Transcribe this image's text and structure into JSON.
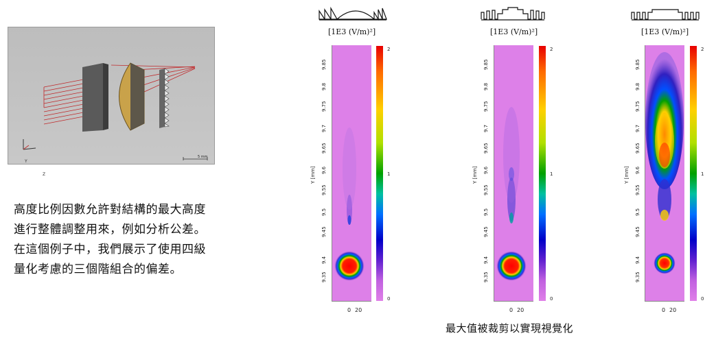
{
  "viewer": {
    "scale_label": "5 mm",
    "axis_y": "Y",
    "axis_z": "Z"
  },
  "description": "高度比例因數允許對結構的最大高度進行整體調整用來，例如分析公差。在這個例子中，我們展示了使用四級量化考慮的三個階組合的偏差。",
  "panels": [
    {
      "unit": "[1E3 (V/m)²]",
      "y_label": "Y [mm]",
      "y_ticks": [
        "9.85",
        "9.8",
        "9.75",
        "9.7",
        "9.65",
        "9.6",
        "9.55",
        "9.5",
        "9.45",
        "9.4",
        "9.35"
      ],
      "x_ticks": [
        "0",
        "20"
      ],
      "cbar_ticks": [
        "2",
        "1",
        "0"
      ]
    },
    {
      "unit": "[1E3 (V/m)²]",
      "y_label": "Y [mm]",
      "y_ticks": [
        "9.85",
        "9.8",
        "9.75",
        "9.7",
        "9.65",
        "9.6",
        "9.55",
        "9.5",
        "9.45",
        "9.4",
        "9.35"
      ],
      "x_ticks": [
        "0",
        "20"
      ],
      "cbar_ticks": [
        "2",
        "1",
        "0"
      ]
    },
    {
      "unit": "[1E3 (V/m)²]",
      "y_label": "Y [mm]",
      "y_ticks": [
        "9.85",
        "9.8",
        "9.75",
        "9.7",
        "9.65",
        "9.6",
        "9.55",
        "9.5",
        "9.45",
        "9.4",
        "9.35"
      ],
      "x_ticks": [
        "0",
        "20"
      ],
      "cbar_ticks": [
        "2",
        "1",
        "0"
      ]
    }
  ],
  "caption": "最大值被裁剪以實現視覺化",
  "colors": {
    "plot_background": "#dd80e8",
    "ray": "#c0282a",
    "lens_gold": "#c9a24a"
  }
}
